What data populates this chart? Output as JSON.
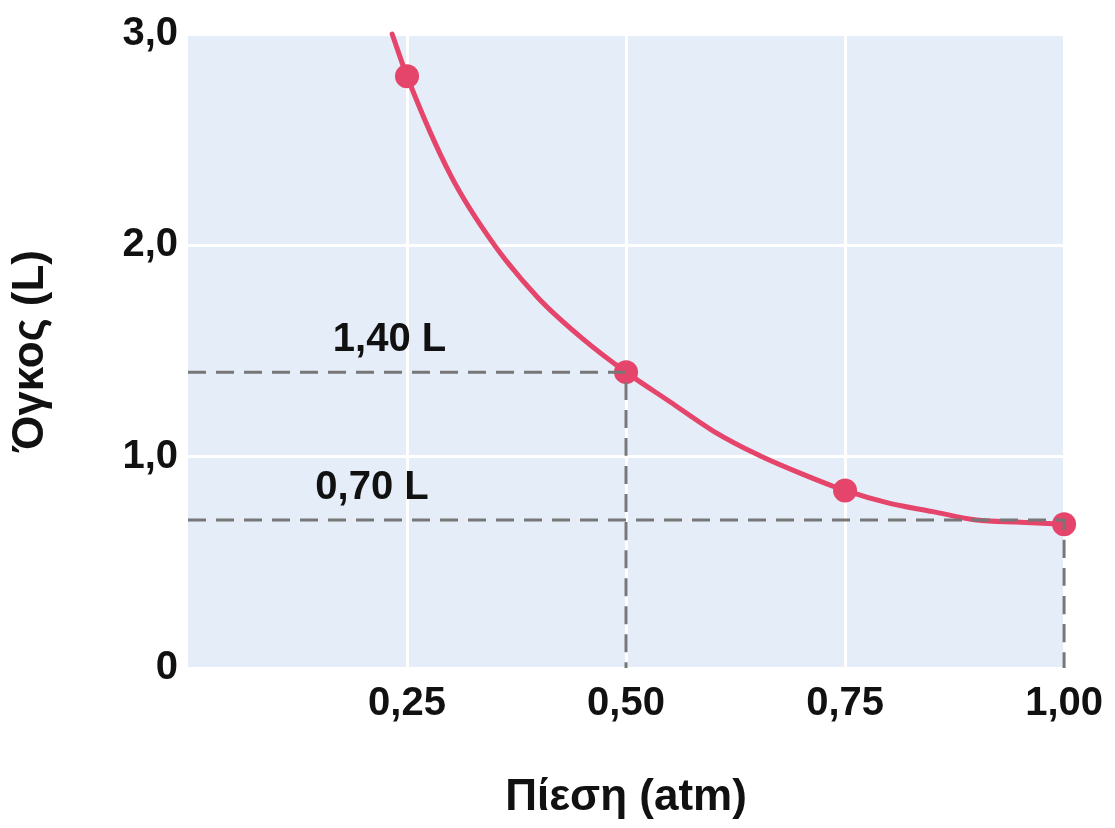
{
  "chart_data": {
    "type": "line",
    "xlabel": "Πίεση (atm)",
    "ylabel": "Όγκος (L)",
    "xlim": [
      0,
      1.0
    ],
    "ylim": [
      0,
      3.0
    ],
    "xticks": [
      {
        "value": 0.25,
        "label": "0,25"
      },
      {
        "value": 0.5,
        "label": "0,50"
      },
      {
        "value": 0.75,
        "label": "0,75"
      },
      {
        "value": 1.0,
        "label": "1,00"
      }
    ],
    "yticks": [
      {
        "value": 0,
        "label": "0"
      },
      {
        "value": 1,
        "label": "1,0"
      },
      {
        "value": 2,
        "label": "2,0"
      },
      {
        "value": 3,
        "label": "3,0"
      }
    ],
    "grid": true,
    "series": [
      {
        "type": "line",
        "color": "#e5446b",
        "marker": "none",
        "line_style": "solid",
        "x": [
          0.233,
          0.25,
          0.3,
          0.35,
          0.4,
          0.45,
          0.5,
          0.55,
          0.6,
          0.65,
          0.7,
          0.75,
          0.8,
          0.85,
          0.9,
          0.95,
          1.0
        ],
        "values": [
          3.0,
          2.8,
          2.33,
          2.0,
          1.75,
          1.56,
          1.4,
          1.26,
          1.12,
          1.01,
          0.92,
          0.84,
          0.78,
          0.74,
          0.7,
          0.69,
          0.68
        ]
      },
      {
        "type": "scatter",
        "color": "#e5446b",
        "marker": "circle",
        "x": [
          0.25,
          0.5,
          0.75,
          1.0
        ],
        "values": [
          2.8,
          1.4,
          0.84,
          0.68
        ]
      },
      {
        "type": "line",
        "color": "#777777",
        "marker": "none",
        "line_style": "dashed",
        "x": [
          0,
          0.5,
          0.5
        ],
        "values": [
          1.4,
          1.4,
          0
        ]
      },
      {
        "type": "line",
        "color": "#777777",
        "marker": "none",
        "line_style": "dashed",
        "x": [
          0,
          1.0,
          1.0
        ],
        "values": [
          0.7,
          0.7,
          0
        ]
      }
    ],
    "annotations": [
      {
        "text": "1,40 L",
        "x": 0.23,
        "y": 1.4
      },
      {
        "text": "0,70 L",
        "x": 0.21,
        "y": 0.7
      }
    ]
  }
}
